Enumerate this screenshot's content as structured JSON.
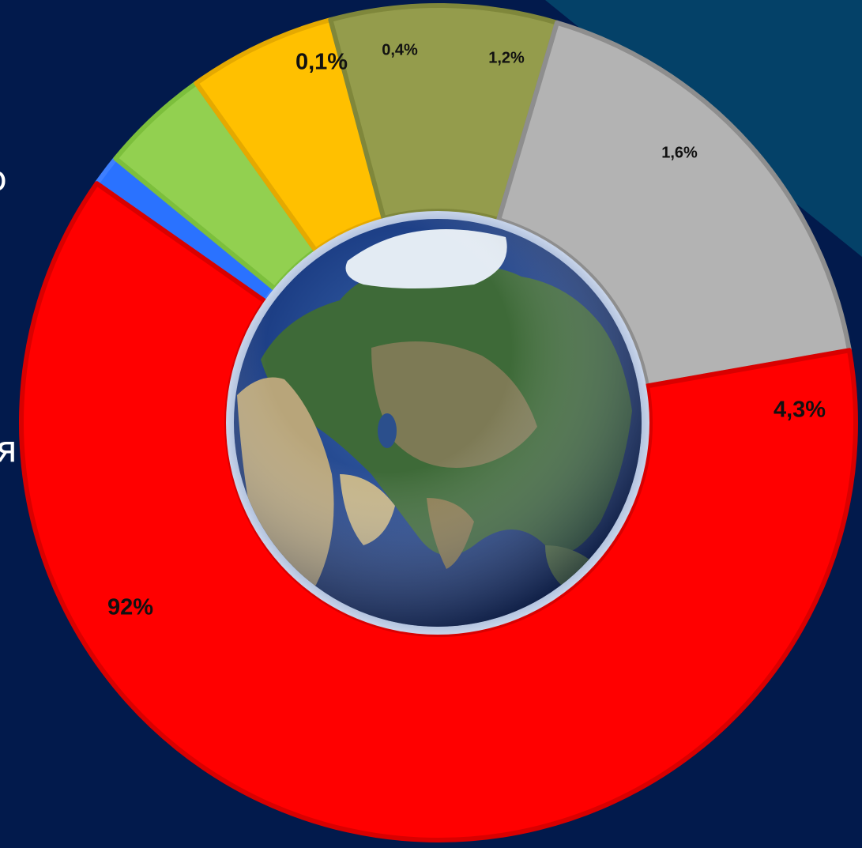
{
  "page": {
    "background_color": "#021a4c",
    "panel_color": "#044168",
    "edge_text_top": "о",
    "edge_text_bottom": "я"
  },
  "chart_data": {
    "type": "pie",
    "style": "donut",
    "title": "",
    "center_image": "earth-globe-eurasia",
    "slices": [
      {
        "label": "0,1%",
        "value": 0.1,
        "color": "#2a72ff",
        "border": "#3d7fff"
      },
      {
        "label": "0,4%",
        "value": 0.4,
        "color": "#92d050",
        "border": "#7cbf3c"
      },
      {
        "label": "1,2%",
        "value": 1.2,
        "color": "#ffc000",
        "border": "#e5a900"
      },
      {
        "label": "1,6%",
        "value": 1.6,
        "color": "#949c4c",
        "border": "#7f873b"
      },
      {
        "label": "4,3%",
        "value": 4.3,
        "color": "#b3b3b3",
        "border": "#8e8e8e"
      },
      {
        "label": "92%",
        "value": 92,
        "color": "#ff0000",
        "border": "#d90000"
      }
    ]
  }
}
